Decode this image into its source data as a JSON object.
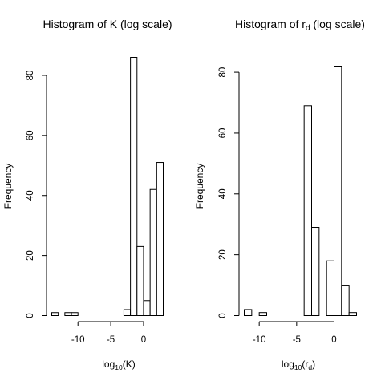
{
  "chart_data": [
    {
      "type": "bar",
      "title": {
        "pre": "Histogram of K (log scale)",
        "sub": "",
        "post": ""
      },
      "xlabel": {
        "pre": "log",
        "sub": "10",
        "post": "(K)"
      },
      "ylabel": "Frequency",
      "bin_width": 1,
      "bins": [
        {
          "x0": -14,
          "x1": -13,
          "count": 1
        },
        {
          "x0": -12,
          "x1": -11,
          "count": 1
        },
        {
          "x0": -11,
          "x1": -10,
          "count": 1
        },
        {
          "x0": -3,
          "x1": -2,
          "count": 2
        },
        {
          "x0": -2,
          "x1": -1,
          "count": 86
        },
        {
          "x0": -1,
          "x1": 0,
          "count": 23
        },
        {
          "x0": 0,
          "x1": 1,
          "count": 5
        },
        {
          "x0": 1,
          "x1": 2,
          "count": 42
        },
        {
          "x0": 2,
          "x1": 3,
          "count": 51
        }
      ],
      "xlim": [
        -14,
        3
      ],
      "ylim": [
        0,
        86
      ],
      "xticks": [
        -10,
        -5,
        0
      ],
      "yticks": [
        0,
        20,
        40,
        60,
        80
      ],
      "grid": false,
      "legend": "none"
    },
    {
      "type": "bar",
      "title": {
        "pre": "Histogram of r",
        "sub": "d",
        "post": " (log scale)"
      },
      "xlabel": {
        "pre": "log",
        "sub": "10",
        "post": "(r",
        "sub2": "d",
        "post2": ")"
      },
      "ylabel": "Frequency",
      "bin_width": 1,
      "bins": [
        {
          "x0": -12,
          "x1": -11,
          "count": 2
        },
        {
          "x0": -10,
          "x1": -9,
          "count": 1
        },
        {
          "x0": -4,
          "x1": -3,
          "count": 69
        },
        {
          "x0": -3,
          "x1": -2,
          "count": 29
        },
        {
          "x0": -1,
          "x1": 0,
          "count": 18
        },
        {
          "x0": 0,
          "x1": 1,
          "count": 82
        },
        {
          "x0": 1,
          "x1": 2,
          "count": 10
        },
        {
          "x0": 2,
          "x1": 3,
          "count": 1
        }
      ],
      "xlim": [
        -12,
        3
      ],
      "ylim": [
        0,
        82
      ],
      "xticks": [
        -10,
        -5,
        0
      ],
      "yticks": [
        0,
        20,
        40,
        60,
        80
      ],
      "grid": false,
      "legend": "none"
    }
  ]
}
